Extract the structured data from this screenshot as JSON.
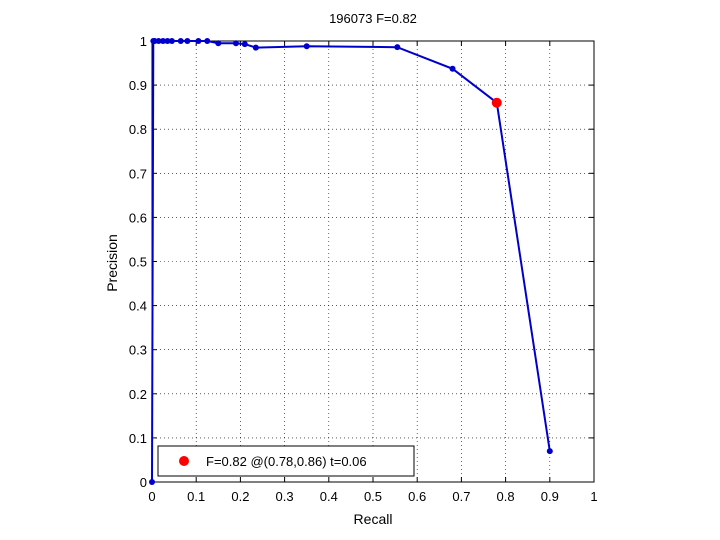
{
  "chart_data": {
    "type": "line",
    "title": "196073 F=0.82",
    "xlabel": "Recall",
    "ylabel": "Precision",
    "xlim": [
      0,
      1
    ],
    "ylim": [
      0,
      1
    ],
    "xticks": [
      "0",
      "0.1",
      "0.2",
      "0.3",
      "0.4",
      "0.5",
      "0.6",
      "0.7",
      "0.8",
      "0.9",
      "1"
    ],
    "yticks": [
      "0",
      "0.1",
      "0.2",
      "0.3",
      "0.4",
      "0.5",
      "0.6",
      "0.7",
      "0.8",
      "0.9",
      "1"
    ],
    "grid": true,
    "legend_position": "bottom-left",
    "series": [
      {
        "color": "#0000cc",
        "x": [
          0.0,
          0.003,
          0.006,
          0.015,
          0.025,
          0.035,
          0.045,
          0.065,
          0.08,
          0.105,
          0.125,
          0.15,
          0.19,
          0.21,
          0.235,
          0.35,
          0.555,
          0.68,
          0.78,
          0.9
        ],
        "y": [
          0.0,
          1.0,
          1.0,
          1.0,
          1.0,
          1.0,
          1.0,
          1.0,
          1.0,
          1.0,
          1.0,
          0.995,
          0.995,
          0.993,
          0.985,
          0.988,
          0.986,
          0.937,
          0.86,
          0.07
        ]
      }
    ],
    "highlight": {
      "x": 0.78,
      "y": 0.86,
      "color": "#ff0000",
      "label": "F=0.82 @(0.78,0.86) t=0.06"
    }
  }
}
